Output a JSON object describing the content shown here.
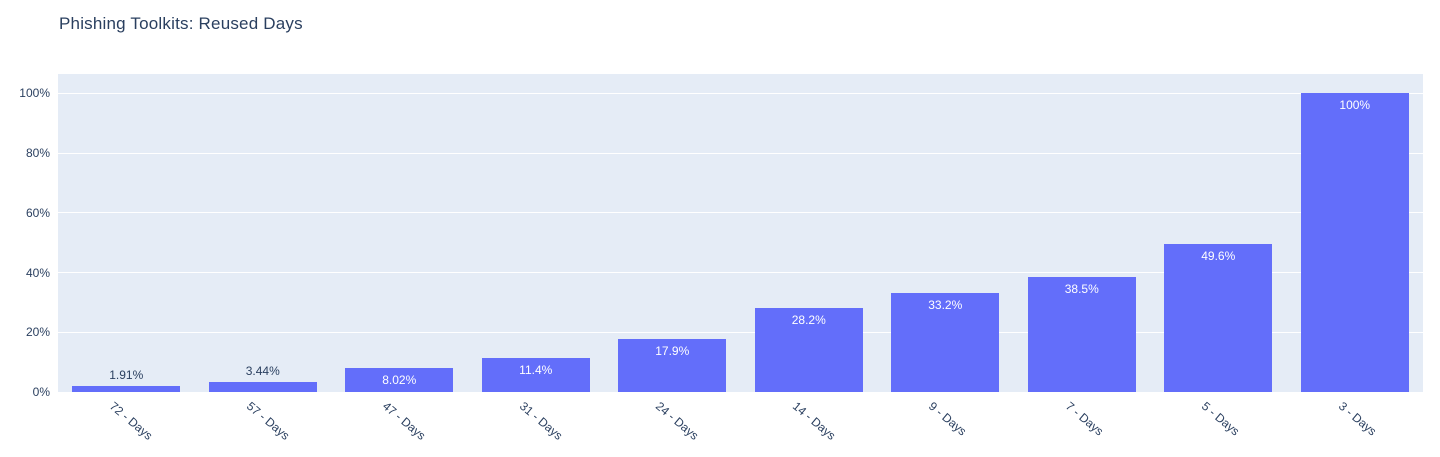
{
  "chart_data": {
    "type": "bar",
    "title": "Phishing Toolkits: Reused Days",
    "categories": [
      "72 - Days",
      "57 - Days",
      "47 - Days",
      "31 - Days",
      "24 - Days",
      "14 - Days",
      "9 - Days",
      "7 - Days",
      "5 - Days",
      "3 - Days"
    ],
    "values": [
      1.91,
      3.44,
      8.02,
      11.4,
      17.9,
      28.2,
      33.2,
      38.5,
      49.6,
      100
    ],
    "value_labels": [
      "1.91%",
      "3.44%",
      "8.02%",
      "11.4%",
      "17.9%",
      "28.2%",
      "33.2%",
      "38.5%",
      "49.6%",
      "100%"
    ],
    "yticks": [
      {
        "value": 0,
        "label": "0%"
      },
      {
        "value": 20,
        "label": "20%"
      },
      {
        "value": 40,
        "label": "40%"
      },
      {
        "value": 60,
        "label": "60%"
      },
      {
        "value": 80,
        "label": "80%"
      },
      {
        "value": 100,
        "label": "100%"
      }
    ],
    "ylim": [
      0,
      106.5
    ],
    "xlabel": "",
    "ylabel": "",
    "grid": true,
    "legend": null,
    "colors": {
      "bar": "#636efa",
      "plot_background": "#e5ecf6",
      "gridline": "#ffffff",
      "text": "#2a3f5f",
      "label_inside": "#ffffff",
      "label_outside": "#2a3f5f"
    }
  }
}
